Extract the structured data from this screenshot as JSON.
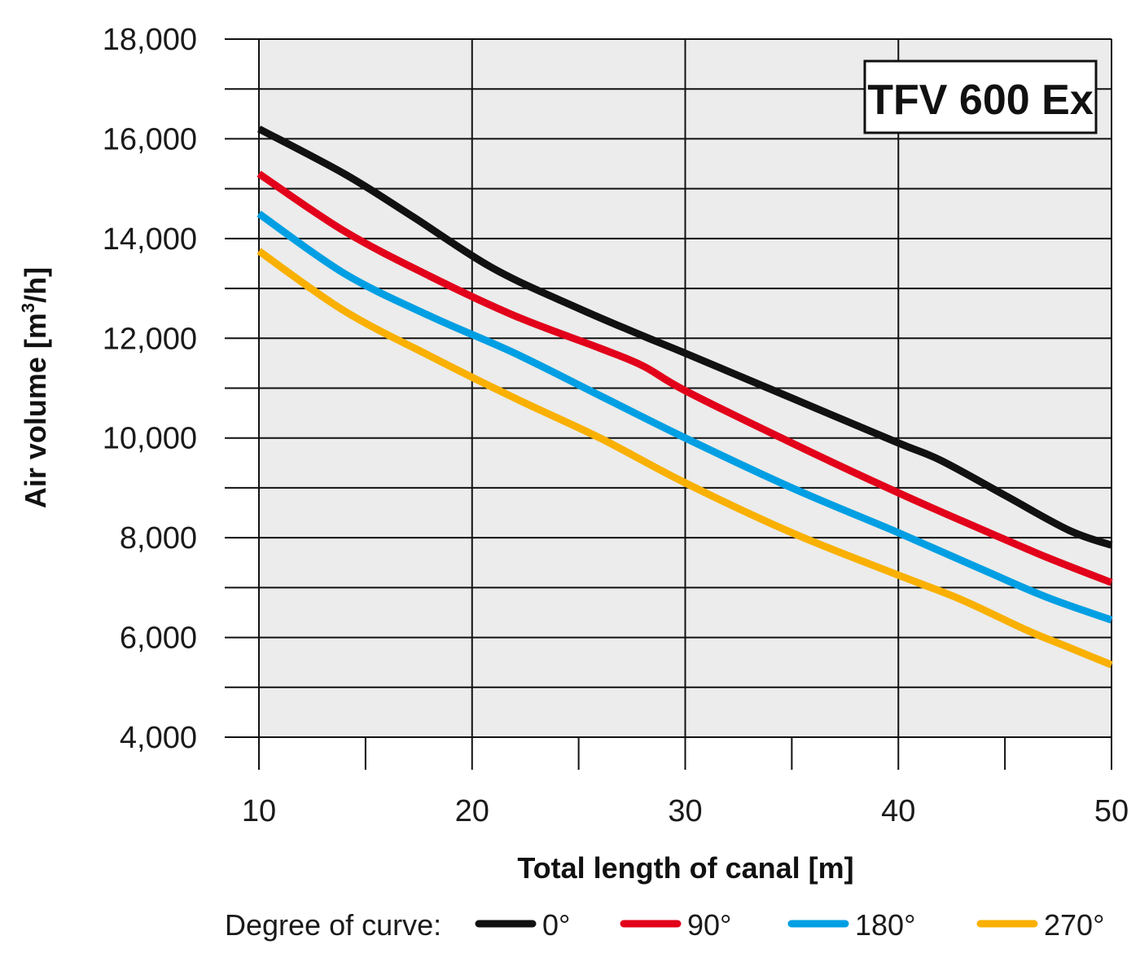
{
  "chart_data": {
    "type": "line",
    "title": "TFV 600 Ex",
    "xlabel": "Total length of canal [m]",
    "ylabel_main": "Air volume [m",
    "ylabel_sup": "3",
    "ylabel_tail": "/h]",
    "xlim": [
      10,
      50
    ],
    "ylim": [
      4000,
      18000
    ],
    "xticks": [
      10,
      20,
      30,
      40,
      50
    ],
    "xtick_labels": [
      "10",
      "20",
      "30",
      "40",
      "50"
    ],
    "yticks": [
      4000,
      6000,
      8000,
      10000,
      12000,
      14000,
      16000,
      18000
    ],
    "ytick_labels": [
      "4,000",
      "6,000",
      "8,000",
      "10,000",
      "12,000",
      "14,000",
      "16,000",
      "18,000"
    ],
    "grid": true,
    "legend_title": "Degree of curve:",
    "legend_position": "bottom",
    "series": [
      {
        "name": "0°",
        "color": "#111111",
        "x": [
          10,
          14,
          17,
          21,
          25,
          28,
          30,
          35,
          40,
          42,
          45,
          48,
          50
        ],
        "y": [
          16200,
          15300,
          14500,
          13400,
          12600,
          12050,
          11700,
          10800,
          9900,
          9550,
          8850,
          8150,
          7850
        ]
      },
      {
        "name": "90°",
        "color": "#e2001a",
        "x": [
          10,
          14,
          18,
          22,
          26,
          28,
          30,
          35,
          40,
          44,
          47,
          50
        ],
        "y": [
          15300,
          14150,
          13250,
          12450,
          11800,
          11450,
          10950,
          9900,
          8900,
          8150,
          7600,
          7100
        ]
      },
      {
        "name": "180°",
        "color": "#009fe3",
        "x": [
          10,
          14,
          18,
          22,
          26,
          30,
          35,
          40,
          44,
          47,
          50
        ],
        "y": [
          14500,
          13300,
          12450,
          11700,
          10850,
          10000,
          9000,
          8100,
          7350,
          6800,
          6350
        ]
      },
      {
        "name": "270°",
        "color": "#f9b000",
        "x": [
          10,
          14,
          18,
          22,
          26,
          30,
          35,
          40,
          43,
          46,
          48,
          50
        ],
        "y": [
          13750,
          12550,
          11650,
          10800,
          10000,
          9100,
          8100,
          7250,
          6750,
          6150,
          5800,
          5450
        ]
      }
    ]
  }
}
